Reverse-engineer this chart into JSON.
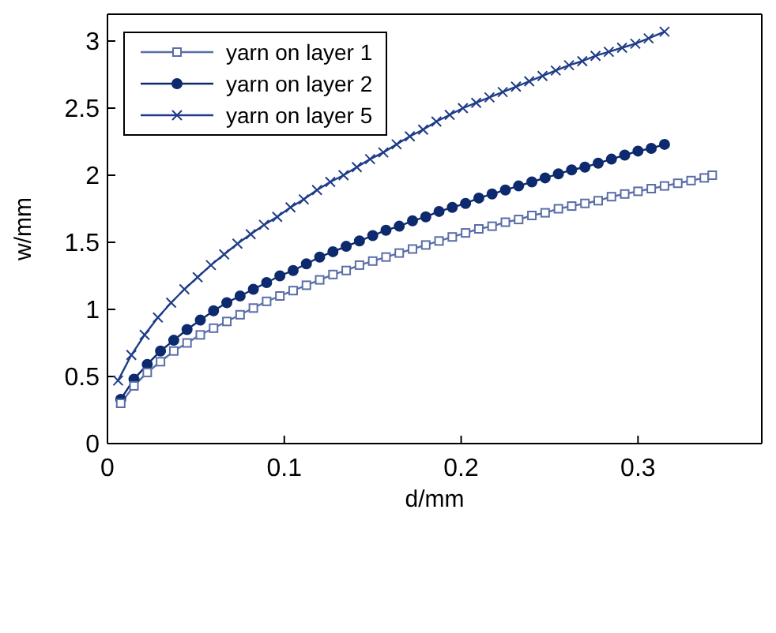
{
  "chart_data": {
    "type": "line",
    "xlabel": "d/mm",
    "ylabel": "w/mm",
    "xlim": [
      0,
      0.37
    ],
    "xticks": [
      0,
      0.1,
      0.2,
      0.3
    ],
    "ylim": [
      0,
      3.2
    ],
    "yticks": [
      0,
      0.5,
      1,
      1.5,
      2,
      2.5,
      3
    ],
    "legend": "top left",
    "line_style": "solid",
    "series": [
      {
        "name": "yarn on layer 1",
        "color": "#5a6ea8",
        "marker": "square",
        "x": [
          0.0075,
          0.015,
          0.0225,
          0.03,
          0.0375,
          0.045,
          0.0525,
          0.06,
          0.0675,
          0.075,
          0.0825,
          0.09,
          0.0975,
          0.105,
          0.1125,
          0.12,
          0.1275,
          0.135,
          0.1425,
          0.15,
          0.1575,
          0.165,
          0.1725,
          0.18,
          0.1875,
          0.195,
          0.2025,
          0.21,
          0.2175,
          0.225,
          0.2325,
          0.24,
          0.2475,
          0.255,
          0.2625,
          0.27,
          0.2775,
          0.285,
          0.2925,
          0.3,
          0.3075,
          0.315,
          0.3225,
          0.33,
          0.3375,
          0.342
        ],
        "values": [
          0.3,
          0.43,
          0.53,
          0.61,
          0.69,
          0.75,
          0.81,
          0.86,
          0.91,
          0.96,
          1.01,
          1.06,
          1.1,
          1.14,
          1.18,
          1.22,
          1.26,
          1.29,
          1.33,
          1.36,
          1.39,
          1.42,
          1.45,
          1.48,
          1.51,
          1.54,
          1.57,
          1.6,
          1.62,
          1.65,
          1.67,
          1.7,
          1.72,
          1.75,
          1.77,
          1.79,
          1.81,
          1.84,
          1.86,
          1.88,
          1.9,
          1.92,
          1.94,
          1.96,
          1.98,
          2.0
        ]
      },
      {
        "name": "yarn on layer 2",
        "color": "#0d2a6e",
        "marker": "circle",
        "x": [
          0.0075,
          0.015,
          0.0225,
          0.03,
          0.0375,
          0.045,
          0.0525,
          0.06,
          0.0675,
          0.075,
          0.0825,
          0.09,
          0.0975,
          0.105,
          0.1125,
          0.12,
          0.1275,
          0.135,
          0.1425,
          0.15,
          0.1575,
          0.165,
          0.1725,
          0.18,
          0.1875,
          0.195,
          0.2025,
          0.21,
          0.2175,
          0.225,
          0.2325,
          0.24,
          0.2475,
          0.255,
          0.2625,
          0.27,
          0.2775,
          0.285,
          0.2925,
          0.3,
          0.3075,
          0.315
        ],
        "values": [
          0.33,
          0.48,
          0.59,
          0.69,
          0.77,
          0.85,
          0.92,
          0.99,
          1.05,
          1.1,
          1.15,
          1.2,
          1.25,
          1.29,
          1.34,
          1.39,
          1.43,
          1.47,
          1.51,
          1.55,
          1.59,
          1.62,
          1.66,
          1.69,
          1.73,
          1.76,
          1.79,
          1.83,
          1.86,
          1.89,
          1.92,
          1.95,
          1.98,
          2.01,
          2.04,
          2.06,
          2.09,
          2.12,
          2.15,
          2.18,
          2.2,
          2.23
        ]
      },
      {
        "name": "yarn on layer 5",
        "color": "#1f3c88",
        "marker": "cross",
        "x": [
          0.006,
          0.0135,
          0.021,
          0.0285,
          0.036,
          0.0435,
          0.051,
          0.0585,
          0.066,
          0.0735,
          0.081,
          0.0885,
          0.096,
          0.1035,
          0.111,
          0.1185,
          0.126,
          0.1335,
          0.141,
          0.1485,
          0.156,
          0.1635,
          0.171,
          0.1785,
          0.186,
          0.1935,
          0.201,
          0.2085,
          0.216,
          0.2235,
          0.231,
          0.2385,
          0.246,
          0.2535,
          0.261,
          0.2685,
          0.276,
          0.2835,
          0.291,
          0.2985,
          0.306,
          0.315
        ],
        "values": [
          0.47,
          0.66,
          0.81,
          0.94,
          1.05,
          1.15,
          1.24,
          1.33,
          1.41,
          1.49,
          1.56,
          1.63,
          1.69,
          1.76,
          1.82,
          1.89,
          1.95,
          2.0,
          2.06,
          2.12,
          2.17,
          2.23,
          2.29,
          2.34,
          2.4,
          2.45,
          2.5,
          2.54,
          2.58,
          2.62,
          2.66,
          2.7,
          2.74,
          2.78,
          2.82,
          2.85,
          2.89,
          2.92,
          2.95,
          2.98,
          3.02,
          3.07
        ]
      }
    ]
  }
}
